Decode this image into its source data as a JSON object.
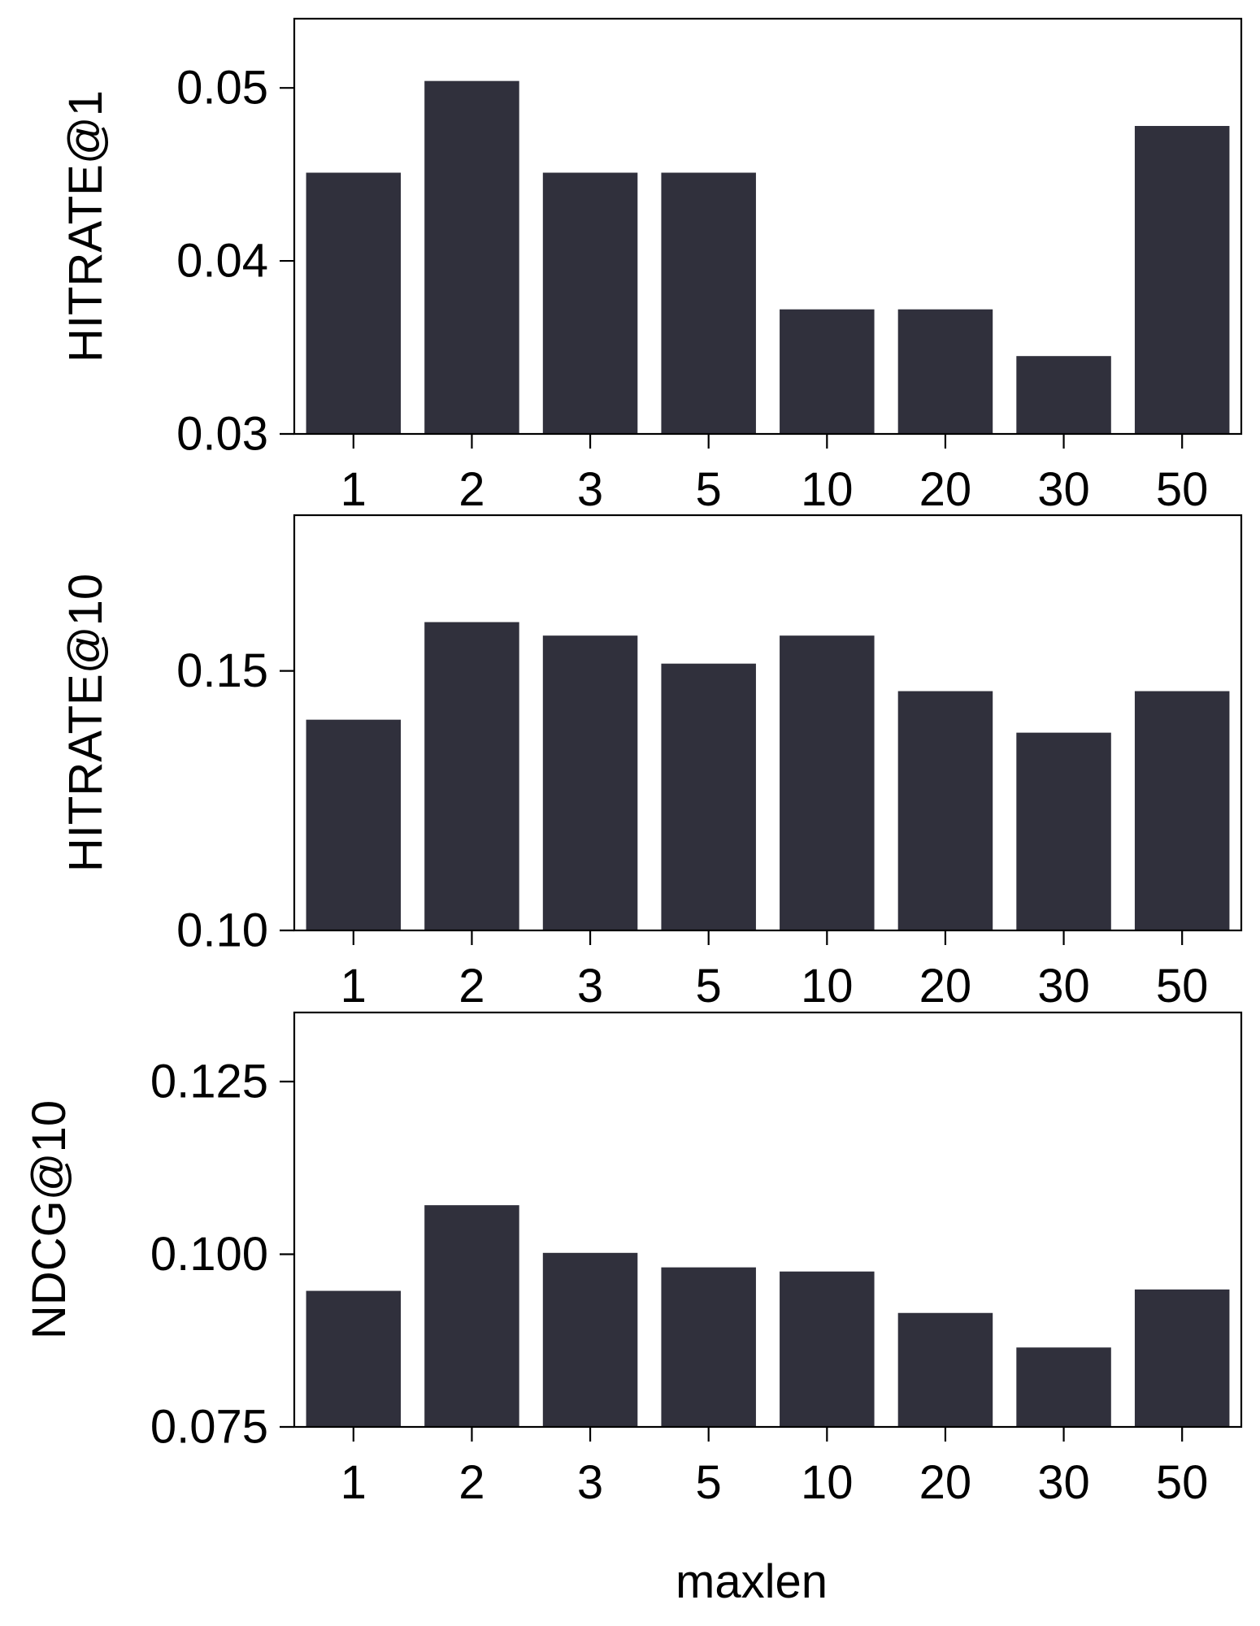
{
  "chart_data": [
    {
      "type": "bar",
      "categories": [
        "1",
        "2",
        "3",
        "5",
        "10",
        "20",
        "30",
        "50"
      ],
      "values": [
        0.0451,
        0.0504,
        0.0451,
        0.0451,
        0.0372,
        0.0372,
        0.0345,
        0.0478
      ],
      "xlabel": "",
      "ylabel": "HITRATE@1",
      "ylim": [
        0.03,
        0.054
      ],
      "yticks": [
        "0.03",
        "0.04",
        "0.05"
      ],
      "grid": false
    },
    {
      "type": "bar",
      "categories": [
        "1",
        "2",
        "3",
        "5",
        "10",
        "20",
        "30",
        "50"
      ],
      "values": [
        0.1406,
        0.1594,
        0.1568,
        0.1514,
        0.1568,
        0.1461,
        0.1381,
        0.1461
      ],
      "xlabel": "",
      "ylabel": "HITRATE@10",
      "ylim": [
        0.1,
        0.18
      ],
      "yticks": [
        "0.10",
        "0.15"
      ],
      "grid": false
    },
    {
      "type": "bar",
      "categories": [
        "1",
        "2",
        "3",
        "5",
        "10",
        "20",
        "30",
        "50"
      ],
      "values": [
        0.0947,
        0.1071,
        0.1002,
        0.0981,
        0.0975,
        0.0915,
        0.0865,
        0.0949
      ],
      "xlabel": "maxlen",
      "ylabel": "NDCG@10",
      "ylim": [
        0.075,
        0.135
      ],
      "yticks": [
        "0.075",
        "0.100",
        "0.125"
      ],
      "grid": false
    }
  ],
  "colors": {
    "bar": "#30303c",
    "axis": "#000000"
  }
}
